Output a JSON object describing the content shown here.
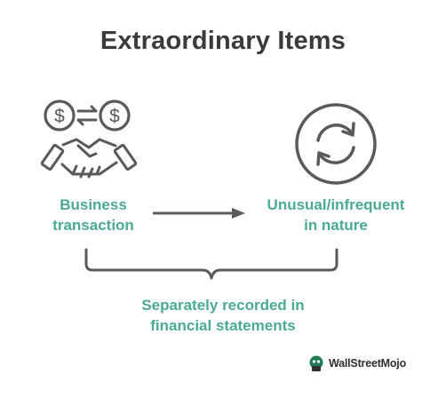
{
  "title": "Extraordinary Items",
  "nodes": {
    "business": {
      "line1": "Business",
      "line2": "transaction"
    },
    "unusual": {
      "line1": "Unusual/infrequent",
      "line2": "in nature"
    },
    "recorded": {
      "line1": "Separately recorded in",
      "line2": "financial statements"
    }
  },
  "icons": {
    "left": [
      "dollar-coin-icon",
      "exchange-arrows-icon",
      "dollar-coin-icon",
      "handshake-icon"
    ],
    "right": "refresh-cycle-icon",
    "connector": "right-arrow-icon",
    "bracket": "curly-brace-icon"
  },
  "brand": {
    "name": "WallStreetMojo"
  },
  "colors": {
    "accent": "#4aaa94",
    "icon": "#5a5a5a",
    "title": "#3b3b3b"
  }
}
